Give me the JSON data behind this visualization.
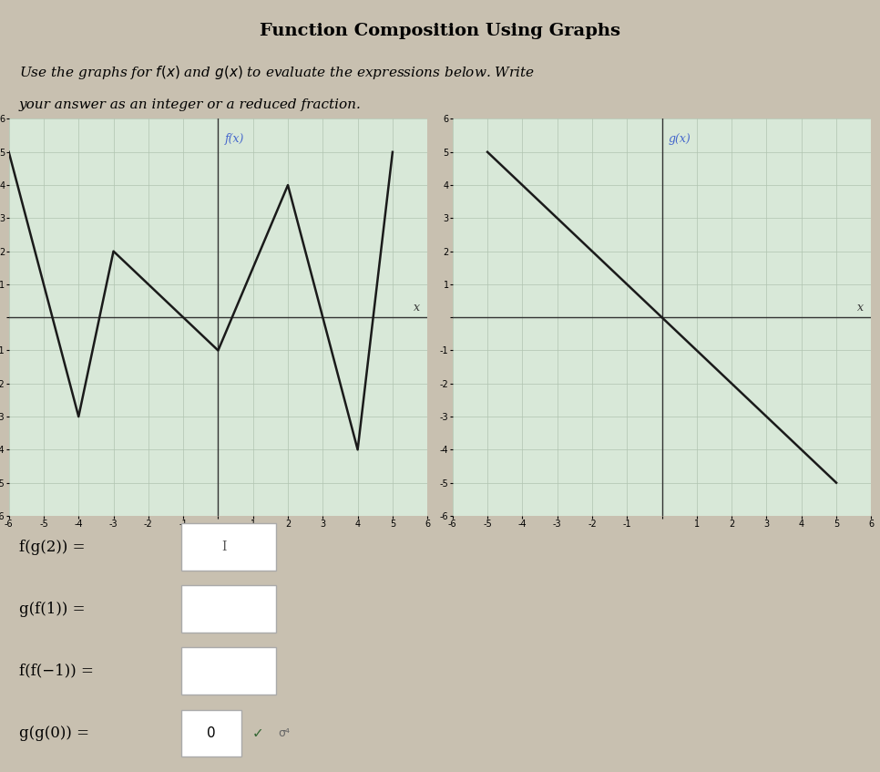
{
  "title": "Function Composition Using Graphs",
  "subtitle_line1": "Use the graphs for $f(x)$ and $g(x)$ to evaluate the expressions below. Write",
  "subtitle_line2": "your answer as an integer or a reduced fraction.",
  "f_points": [
    [
      -6,
      5
    ],
    [
      -4,
      -3
    ],
    [
      -3,
      2
    ],
    [
      0,
      -1
    ],
    [
      2,
      4
    ],
    [
      4,
      -4
    ],
    [
      5,
      5
    ]
  ],
  "g_points": [
    [
      -5,
      5
    ],
    [
      5,
      -5
    ]
  ],
  "f_label": "f(x)",
  "g_label": "g(x)",
  "axis_xlim": [
    -6,
    6
  ],
  "axis_ylim": [
    -6,
    6
  ],
  "grid_color": "#b0c4b0",
  "bg_color": "#d8e8d8",
  "line_color": "#1a1a1a",
  "label_color": "#4466cc",
  "questions": [
    "f(g(2)) =",
    "g(f(1)) =",
    "f(f(−1)) =",
    "g(g(0)) ="
  ],
  "answer_last": "0",
  "outer_bg": "#c8c0b0",
  "section_bg": "#d4cfc8",
  "border_color": "#888888"
}
